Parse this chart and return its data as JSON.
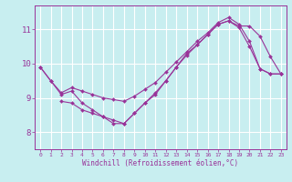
{
  "xlabel": "Windchill (Refroidissement éolien,°C)",
  "bg_color": "#c8eef0",
  "grid_color": "#ffffff",
  "line_color": "#993399",
  "xticks": [
    0,
    1,
    2,
    3,
    4,
    5,
    6,
    7,
    8,
    9,
    10,
    11,
    12,
    13,
    14,
    15,
    16,
    17,
    18,
    19,
    20,
    21,
    22,
    23
  ],
  "yticks": [
    8,
    9,
    10,
    11
  ],
  "xlim": [
    -0.5,
    23.5
  ],
  "ylim": [
    7.5,
    11.7
  ],
  "lines": [
    {
      "x": [
        0,
        1,
        2,
        3,
        4,
        5,
        6,
        7,
        8,
        9,
        10,
        11,
        12,
        13,
        14,
        15,
        16,
        17,
        18,
        19,
        20,
        21,
        22,
        23
      ],
      "y": [
        9.9,
        9.5,
        9.1,
        9.2,
        8.85,
        8.65,
        8.45,
        8.25,
        8.25,
        8.55,
        8.85,
        9.1,
        9.5,
        9.9,
        10.25,
        10.55,
        10.85,
        11.15,
        11.25,
        11.05,
        10.5,
        9.85,
        9.7,
        9.7
      ]
    },
    {
      "x": [
        0,
        1,
        2,
        3,
        4,
        5,
        6,
        7,
        8,
        9,
        10,
        11,
        12,
        13,
        14,
        15,
        16,
        17,
        18,
        19,
        20,
        21,
        22,
        23
      ],
      "y": [
        9.9,
        9.5,
        9.15,
        9.3,
        9.2,
        9.1,
        9.0,
        8.95,
        8.9,
        9.05,
        9.25,
        9.45,
        9.75,
        10.05,
        10.35,
        10.65,
        10.9,
        11.2,
        11.35,
        11.15,
        10.65,
        9.85,
        9.7,
        9.7
      ]
    },
    {
      "x": [
        2,
        3,
        4,
        5,
        6,
        7,
        8,
        9,
        10,
        11,
        12,
        13,
        14,
        15,
        16,
        17,
        18,
        19,
        20,
        21,
        22,
        23
      ],
      "y": [
        8.9,
        8.85,
        8.65,
        8.55,
        8.45,
        8.35,
        8.25,
        8.55,
        8.85,
        9.15,
        9.5,
        9.9,
        10.3,
        10.55,
        10.85,
        11.15,
        11.25,
        11.1,
        11.1,
        10.8,
        10.2,
        9.7
      ]
    }
  ]
}
